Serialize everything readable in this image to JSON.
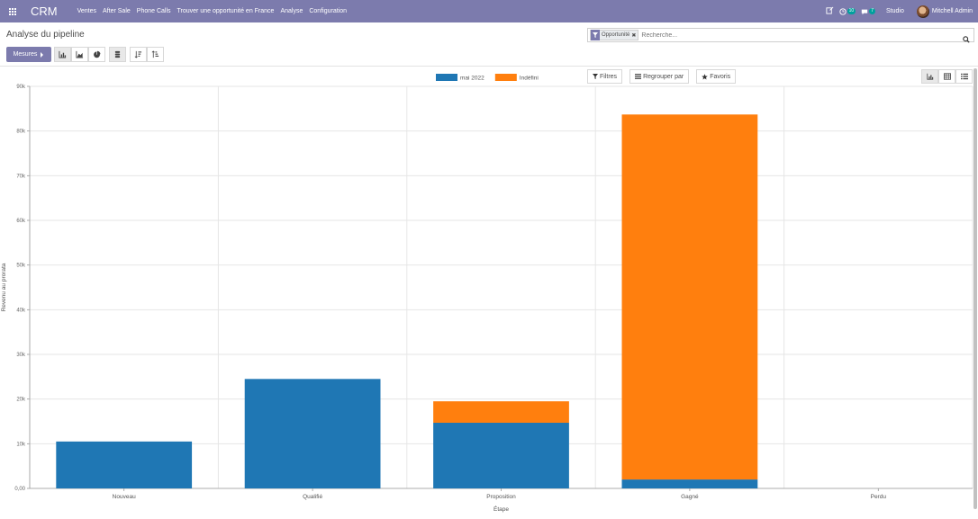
{
  "navbar": {
    "brand": "CRM",
    "menu": [
      "Ventes",
      "After Sale",
      "Phone Calls",
      "Trouver une opportunité en France",
      "Analyse",
      "Configuration"
    ],
    "activity_count": "10",
    "message_count": "7",
    "studio": "Studio",
    "user": "Mitchell Admin"
  },
  "page": {
    "title": "Analyse du pipeline",
    "measures_label": "Mesures"
  },
  "search": {
    "facet": "Opportunité",
    "placeholder": "Recherche..."
  },
  "filters": {
    "filters_label": "Filtres",
    "group_label": "Regrouper par",
    "favorites_label": "Favoris"
  },
  "colors": {
    "navbar": "#7c7bad",
    "series_1": "#1f77b4",
    "series_2": "#ff7f0e"
  },
  "chart_data": {
    "type": "bar",
    "stacked": true,
    "categories": [
      "Nouveau",
      "Qualifié",
      "Proposition",
      "Gagné",
      "Perdu"
    ],
    "series": [
      {
        "name": "mai 2022",
        "values": [
          10500,
          24500,
          14700,
          2000,
          0
        ]
      },
      {
        "name": "Indéfini",
        "values": [
          0,
          0,
          4800,
          81700,
          0
        ]
      }
    ],
    "ylabel": "Revenu au prorata",
    "xlabel": "Étape",
    "ylim": [
      0,
      90000
    ],
    "yticks": [
      "0,00",
      "10k",
      "20k",
      "30k",
      "40k",
      "50k",
      "60k",
      "70k",
      "80k",
      "90k"
    ],
    "grid": true,
    "legend_position": "top-center"
  }
}
